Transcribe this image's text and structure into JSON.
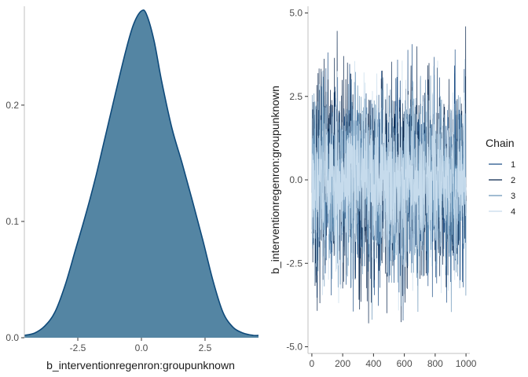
{
  "chart_data": [
    {
      "type": "area",
      "title": "",
      "xlabel": "b_interventionregenron:groupunknown",
      "ylabel": "",
      "xlim": [
        -4.6,
        4.6
      ],
      "ylim": [
        0,
        0.285
      ],
      "xticks": [
        -2.5,
        0.0,
        2.5
      ],
      "xtick_labels": [
        "-2.5",
        "0.0",
        "2.5"
      ],
      "yticks": [
        0.0,
        0.1,
        0.2
      ],
      "ytick_labels": [
        "0.0",
        "0.1",
        "0.2"
      ],
      "grid": false,
      "fill_color": "#5485a3",
      "line_color": "#0f4a7a",
      "series": [
        {
          "name": "density",
          "x": [
            -4.6,
            -4.2,
            -3.8,
            -3.4,
            -3.0,
            -2.6,
            -2.2,
            -1.8,
            -1.4,
            -1.0,
            -0.6,
            -0.3,
            0.0,
            0.2,
            0.5,
            0.8,
            1.2,
            1.6,
            2.0,
            2.4,
            2.8,
            3.2,
            3.6,
            4.0,
            4.4,
            4.6
          ],
          "y": [
            0.002,
            0.004,
            0.01,
            0.022,
            0.045,
            0.075,
            0.105,
            0.138,
            0.175,
            0.212,
            0.248,
            0.27,
            0.281,
            0.278,
            0.255,
            0.22,
            0.18,
            0.15,
            0.118,
            0.085,
            0.05,
            0.022,
            0.009,
            0.004,
            0.002,
            0.002
          ]
        }
      ]
    },
    {
      "type": "line",
      "title": "",
      "xlabel": "",
      "ylabel": "b_interventionregenron:groupunknown",
      "xlim": [
        -25,
        1025
      ],
      "ylim": [
        -5.2,
        5.2
      ],
      "xticks": [
        0,
        200,
        400,
        600,
        800,
        1000
      ],
      "xtick_labels": [
        "0",
        "200",
        "400",
        "600",
        "800",
        "1000"
      ],
      "yticks": [
        -5.0,
        -2.5,
        0.0,
        2.5,
        5.0
      ],
      "ytick_labels": [
        "-5.0",
        "-2.5",
        "0.0",
        "2.5",
        "5.0"
      ],
      "grid": false,
      "iterations": 1000,
      "legend": {
        "title": "Chain",
        "position": "right"
      },
      "series": [
        {
          "name": "1",
          "color": "#1e4f86",
          "sd": 1.4,
          "seed": 11
        },
        {
          "name": "2",
          "color": "#06234a",
          "sd": 1.45,
          "seed": 23
        },
        {
          "name": "3",
          "color": "#6a95b8",
          "sd": 1.35,
          "seed": 37
        },
        {
          "name": "4",
          "color": "#c6dbec",
          "sd": 1.3,
          "seed": 53
        }
      ]
    }
  ]
}
